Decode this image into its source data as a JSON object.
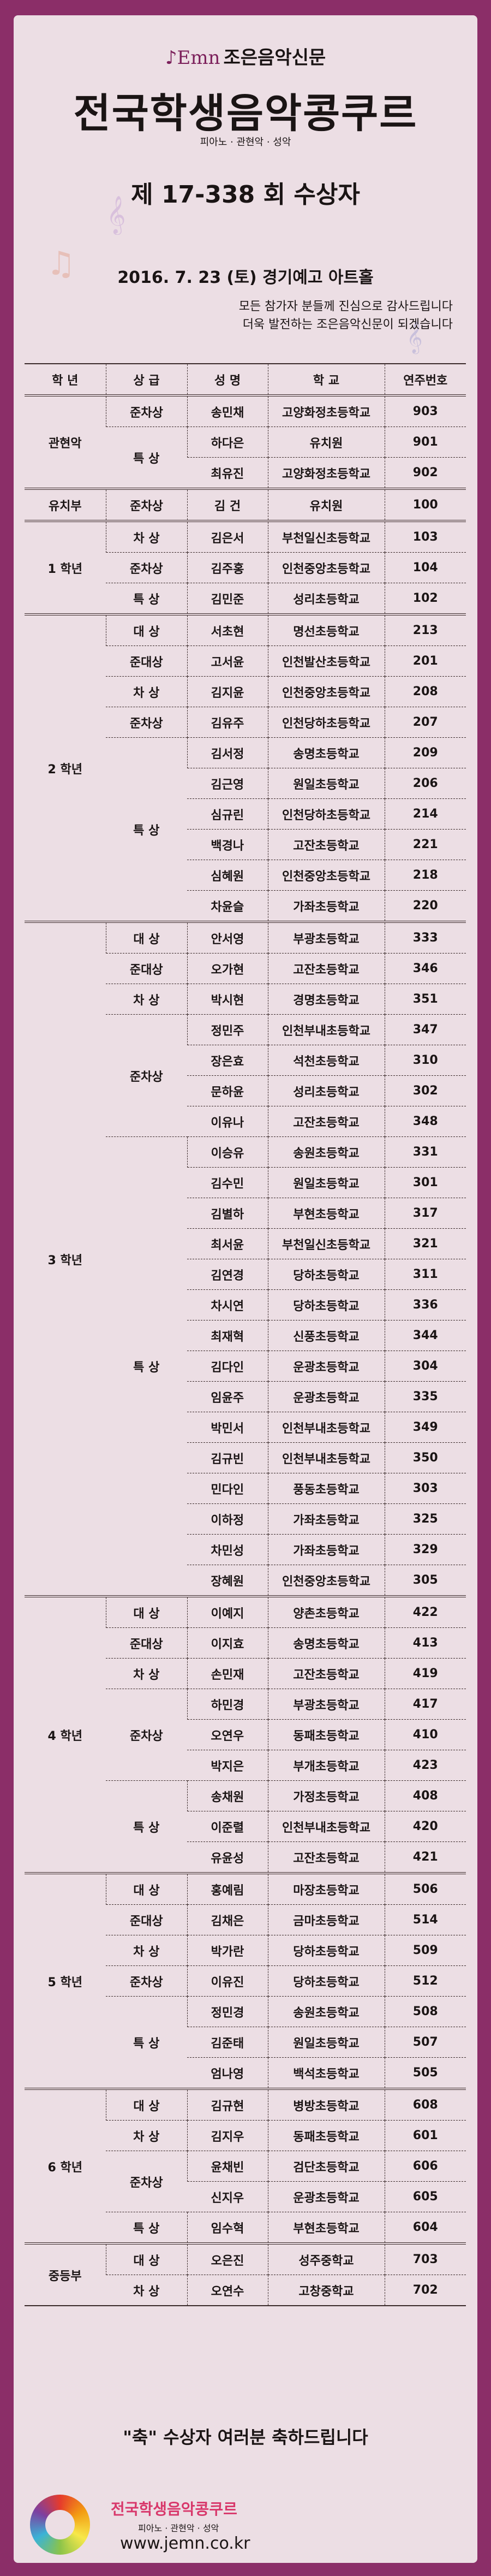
{
  "header": {
    "logo_mark": "Emn",
    "newspaper": "조은음악신문",
    "title": "전국학생음악콩쿠르",
    "genres": "피아노 · 관현악 · 성악",
    "round": "제 17-338 회  수상자",
    "date_venue": "2016. 7. 23 (토)  경기예고 아트홀",
    "thanks_line1": "모든 참가자 분들께 진심으로 감사드립니다",
    "thanks_line2": "더욱 발전하는 조은음악신문이 되겠습니다"
  },
  "table": {
    "columns": [
      "학 년",
      "상 급",
      "성 명",
      "학 교",
      "연주번호"
    ],
    "groups": [
      {
        "grade": "관현악",
        "awards": [
          {
            "award": "준차상",
            "entries": [
              [
                "송민채",
                "고양화정초등학교",
                "903"
              ]
            ]
          },
          {
            "award": "특 상",
            "entries": [
              [
                "하다은",
                "유치원",
                "901"
              ],
              [
                "최유진",
                "고양화정초등학교",
                "902"
              ]
            ]
          }
        ]
      },
      {
        "grade": "유치부",
        "awards": [
          {
            "award": "준차상",
            "entries": [
              [
                "김 건",
                "유치원",
                "100"
              ]
            ]
          }
        ]
      },
      {
        "grade": "1 학년",
        "awards": [
          {
            "award": "차 상",
            "entries": [
              [
                "김은서",
                "부천일신초등학교",
                "103"
              ]
            ]
          },
          {
            "award": "준차상",
            "entries": [
              [
                "김주홍",
                "인천중앙초등학교",
                "104"
              ]
            ]
          },
          {
            "award": "특 상",
            "entries": [
              [
                "김민준",
                "성리초등학교",
                "102"
              ]
            ]
          }
        ]
      },
      {
        "grade": "2 학년",
        "awards": [
          {
            "award": "대 상",
            "entries": [
              [
                "서초현",
                "명선초등학교",
                "213"
              ]
            ]
          },
          {
            "award": "준대상",
            "entries": [
              [
                "고서윤",
                "인천발산초등학교",
                "201"
              ]
            ]
          },
          {
            "award": "차 상",
            "entries": [
              [
                "김지윤",
                "인천중앙초등학교",
                "208"
              ]
            ]
          },
          {
            "award": "준차상",
            "entries": [
              [
                "김유주",
                "인천당하초등학교",
                "207"
              ]
            ]
          },
          {
            "award": "특 상",
            "entries": [
              [
                "김서정",
                "송명초등학교",
                "209"
              ],
              [
                "김근영",
                "원일초등학교",
                "206"
              ],
              [
                "심규린",
                "인천당하초등학교",
                "214"
              ],
              [
                "백경나",
                "고잔초등학교",
                "221"
              ],
              [
                "심혜원",
                "인천중앙초등학교",
                "218"
              ],
              [
                "차윤슬",
                "가좌초등학교",
                "220"
              ]
            ]
          }
        ]
      },
      {
        "grade": "3 학년",
        "awards": [
          {
            "award": "대 상",
            "entries": [
              [
                "안서영",
                "부광초등학교",
                "333"
              ]
            ]
          },
          {
            "award": "준대상",
            "entries": [
              [
                "오가현",
                "고잔초등학교",
                "346"
              ]
            ]
          },
          {
            "award": "차 상",
            "entries": [
              [
                "박시현",
                "경명초등학교",
                "351"
              ]
            ]
          },
          {
            "award": "준차상",
            "entries": [
              [
                "정민주",
                "인천부내초등학교",
                "347"
              ],
              [
                "장은효",
                "석천초등학교",
                "310"
              ],
              [
                "문하윤",
                "성리초등학교",
                "302"
              ],
              [
                "이유나",
                "고잔초등학교",
                "348"
              ]
            ]
          },
          {
            "award": "특 상",
            "entries": [
              [
                "이승유",
                "송원초등학교",
                "331"
              ],
              [
                "김수민",
                "원일초등학교",
                "301"
              ],
              [
                "김별하",
                "부현초등학교",
                "317"
              ],
              [
                "최서윤",
                "부천일신초등학교",
                "321"
              ],
              [
                "김연경",
                "당하초등학교",
                "311"
              ],
              [
                "차시연",
                "당하초등학교",
                "336"
              ],
              [
                "최재혁",
                "신풍초등학교",
                "344"
              ],
              [
                "김다인",
                "운광초등학교",
                "304"
              ],
              [
                "임윤주",
                "운광초등학교",
                "335"
              ],
              [
                "박민서",
                "인천부내초등학교",
                "349"
              ],
              [
                "김규빈",
                "인천부내초등학교",
                "350"
              ],
              [
                "민다인",
                "풍동초등학교",
                "303"
              ],
              [
                "이하정",
                "가좌초등학교",
                "325"
              ],
              [
                "차민성",
                "가좌초등학교",
                "329"
              ],
              [
                "장혜원",
                "인천중앙초등학교",
                "305"
              ]
            ]
          }
        ]
      },
      {
        "grade": "4 학년",
        "awards": [
          {
            "award": "대 상",
            "entries": [
              [
                "이예지",
                "양촌초등학교",
                "422"
              ]
            ]
          },
          {
            "award": "준대상",
            "entries": [
              [
                "이지효",
                "송명초등학교",
                "413"
              ]
            ]
          },
          {
            "award": "차 상",
            "entries": [
              [
                "손민재",
                "고잔초등학교",
                "419"
              ]
            ]
          },
          {
            "award": "준차상",
            "entries": [
              [
                "하민경",
                "부광초등학교",
                "417"
              ],
              [
                "오연우",
                "동패초등학교",
                "410"
              ],
              [
                "박지은",
                "부개초등학교",
                "423"
              ]
            ]
          },
          {
            "award": "특 상",
            "entries": [
              [
                "송채원",
                "가정초등학교",
                "408"
              ],
              [
                "이준렬",
                "인천부내초등학교",
                "420"
              ],
              [
                "유윤성",
                "고잔초등학교",
                "421"
              ]
            ]
          }
        ]
      },
      {
        "grade": "5 학년",
        "awards": [
          {
            "award": "대 상",
            "entries": [
              [
                "홍예림",
                "마장초등학교",
                "506"
              ]
            ]
          },
          {
            "award": "준대상",
            "entries": [
              [
                "김채은",
                "금마초등학교",
                "514"
              ]
            ]
          },
          {
            "award": "차 상",
            "entries": [
              [
                "박가란",
                "당하초등학교",
                "509"
              ]
            ]
          },
          {
            "award": "준차상",
            "entries": [
              [
                "이유진",
                "당하초등학교",
                "512"
              ]
            ]
          },
          {
            "award": "특 상",
            "entries": [
              [
                "정민경",
                "송원초등학교",
                "508"
              ],
              [
                "김준태",
                "원일초등학교",
                "507"
              ],
              [
                "엄나영",
                "백석초등학교",
                "505"
              ]
            ]
          }
        ]
      },
      {
        "grade": "6 학년",
        "awards": [
          {
            "award": "대 상",
            "entries": [
              [
                "김규현",
                "병방초등학교",
                "608"
              ]
            ]
          },
          {
            "award": "차 상",
            "entries": [
              [
                "김지우",
                "동패초등학교",
                "601"
              ]
            ]
          },
          {
            "award": "준차상",
            "entries": [
              [
                "윤채빈",
                "검단초등학교",
                "606"
              ],
              [
                "신지우",
                "운광초등학교",
                "605"
              ]
            ]
          },
          {
            "award": "특 상",
            "entries": [
              [
                "임수혁",
                "부현초등학교",
                "604"
              ]
            ]
          }
        ]
      },
      {
        "grade": "중등부",
        "awards": [
          {
            "award": "대 상",
            "entries": [
              [
                "오은진",
                "성주중학교",
                "703"
              ]
            ]
          },
          {
            "award": "차 상",
            "entries": [
              [
                "오연수",
                "고창중학교",
                "702"
              ]
            ]
          }
        ]
      }
    ]
  },
  "footer": {
    "congrats": "\"축\"  수상자 여러분 축하드립니다",
    "title": "전국학생음악콩쿠르",
    "genres": "피아노 · 관현악 · 성악",
    "url": "www.jemn.co.kr",
    "title_color": "#d8386b"
  },
  "colors": {
    "frame": "#8b2e68",
    "panel": "#ecdee4",
    "text": "#1a1414"
  }
}
